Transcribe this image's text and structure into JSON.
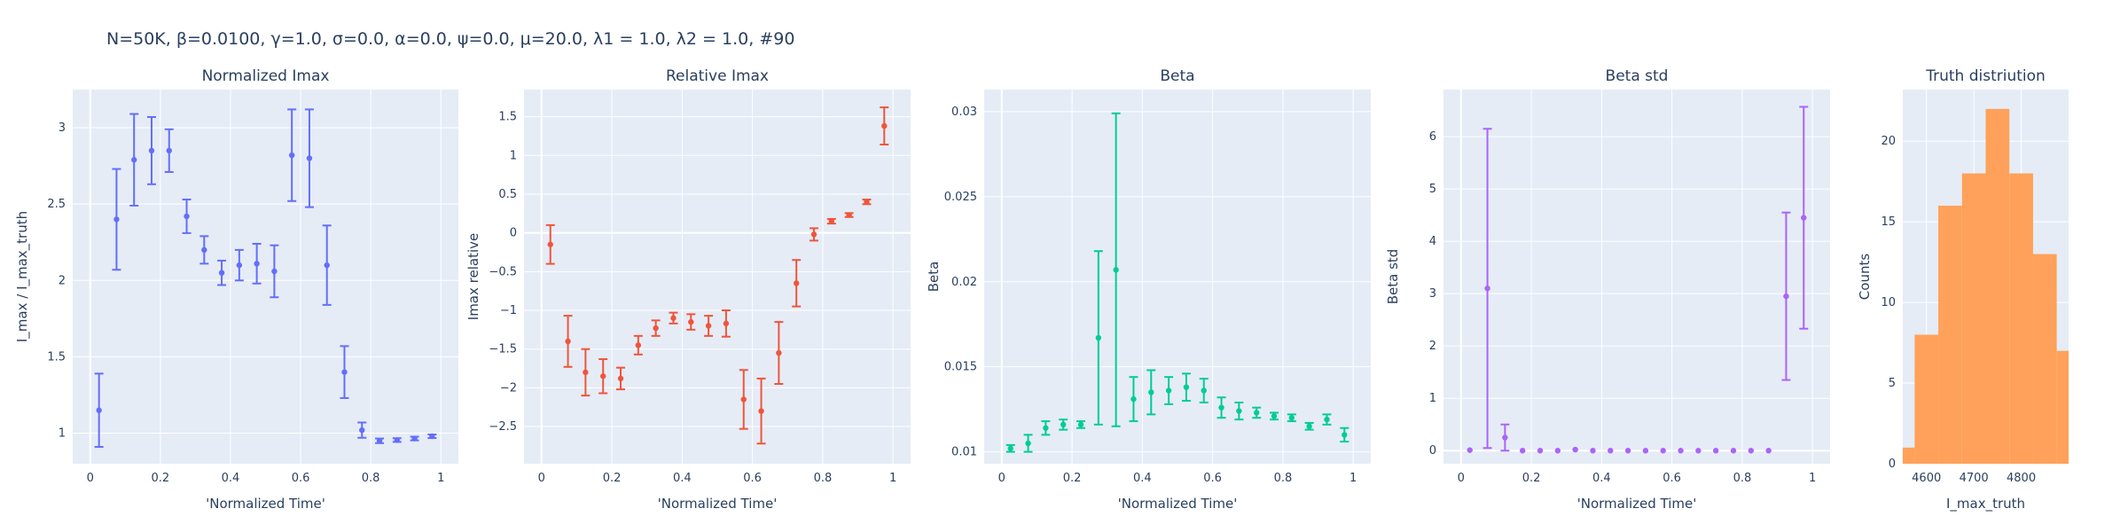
{
  "suptitle": "N=50K, β=0.0100, γ=1.0, σ=0.0,  α=0.0, ψ=0.0, μ=20.0, λ1 = 1.0, λ2 = 1.0, #90",
  "chart_data": [
    {
      "type": "scatter",
      "title": "Normalized Imax",
      "xlabel": "'Normalized Time'",
      "ylabel": "I_max / I_max_truth",
      "color": "#636efa",
      "xlim": [
        -0.05,
        1.05
      ],
      "ylim": [
        0.8,
        3.25
      ],
      "xticks": [
        0,
        0.2,
        0.4,
        0.6,
        0.8,
        1
      ],
      "xtick_labels": [
        "0",
        "0.2",
        "0.4",
        "0.6",
        "0.8",
        "1"
      ],
      "yticks": [
        1,
        1.5,
        2,
        2.5,
        3
      ],
      "ytick_labels": [
        "1",
        "1.5",
        "2",
        "2.5",
        "3"
      ],
      "x": [
        0.025,
        0.075,
        0.125,
        0.175,
        0.225,
        0.275,
        0.325,
        0.375,
        0.425,
        0.475,
        0.525,
        0.575,
        0.625,
        0.675,
        0.725,
        0.775,
        0.825,
        0.875,
        0.925,
        0.975
      ],
      "y": [
        1.15,
        2.4,
        2.79,
        2.85,
        2.85,
        2.42,
        2.2,
        2.05,
        2.1,
        2.11,
        2.06,
        2.82,
        2.8,
        2.1,
        1.4,
        1.02,
        0.95,
        0.955,
        0.965,
        0.98
      ],
      "err": [
        0.24,
        0.33,
        0.3,
        0.22,
        0.14,
        0.11,
        0.09,
        0.08,
        0.1,
        0.13,
        0.17,
        0.3,
        0.32,
        0.26,
        0.17,
        0.05,
        0.015,
        0.012,
        0.012,
        0.012
      ]
    },
    {
      "type": "scatter",
      "title": "Relative Imax",
      "xlabel": "'Normalized Time'",
      "ylabel": "Imax relative",
      "color": "#ef553b",
      "xlim": [
        -0.05,
        1.05
      ],
      "ylim": [
        -2.98,
        1.85
      ],
      "xticks": [
        0,
        0.2,
        0.4,
        0.6,
        0.8,
        1
      ],
      "xtick_labels": [
        "0",
        "0.2",
        "0.4",
        "0.6",
        "0.8",
        "1"
      ],
      "yticks": [
        -2.5,
        -2,
        -1.5,
        -1,
        -0.5,
        0,
        0.5,
        1,
        1.5
      ],
      "ytick_labels": [
        "−2.5",
        "−2",
        "−1.5",
        "−1",
        "−0.5",
        "0",
        "0.5",
        "1",
        "1.5"
      ],
      "x": [
        0.025,
        0.075,
        0.125,
        0.175,
        0.225,
        0.275,
        0.325,
        0.375,
        0.425,
        0.475,
        0.525,
        0.575,
        0.625,
        0.675,
        0.725,
        0.775,
        0.825,
        0.875,
        0.925,
        0.975
      ],
      "y": [
        -0.15,
        -1.4,
        -1.8,
        -1.85,
        -1.88,
        -1.45,
        -1.23,
        -1.1,
        -1.15,
        -1.2,
        -1.17,
        -2.15,
        -2.3,
        -1.55,
        -0.65,
        -0.02,
        0.15,
        0.23,
        0.4,
        1.38
      ],
      "err": [
        0.25,
        0.33,
        0.3,
        0.22,
        0.14,
        0.12,
        0.1,
        0.07,
        0.1,
        0.13,
        0.17,
        0.38,
        0.42,
        0.4,
        0.3,
        0.08,
        0.03,
        0.025,
        0.03,
        0.24
      ]
    },
    {
      "type": "scatter",
      "title": "Beta",
      "xlabel": "'Normalized Time'",
      "ylabel": "Beta",
      "color": "#00cc96",
      "xlim": [
        -0.05,
        1.05
      ],
      "ylim": [
        0.0093,
        0.0313
      ],
      "xticks": [
        0,
        0.2,
        0.4,
        0.6,
        0.8,
        1
      ],
      "xtick_labels": [
        "0",
        "0.2",
        "0.4",
        "0.6",
        "0.8",
        "1"
      ],
      "yticks": [
        0.01,
        0.015,
        0.02,
        0.025,
        0.03
      ],
      "ytick_labels": [
        "0.01",
        "0.015",
        "0.02",
        "0.025",
        "0.03"
      ],
      "x": [
        0.025,
        0.075,
        0.125,
        0.175,
        0.225,
        0.275,
        0.325,
        0.375,
        0.425,
        0.475,
        0.525,
        0.575,
        0.625,
        0.675,
        0.725,
        0.775,
        0.825,
        0.875,
        0.925,
        0.975
      ],
      "y": [
        0.0102,
        0.0105,
        0.0114,
        0.0116,
        0.0116,
        0.0167,
        0.0207,
        0.0131,
        0.0135,
        0.0136,
        0.0138,
        0.0136,
        0.0126,
        0.0124,
        0.0123,
        0.0121,
        0.012,
        0.0115,
        0.0119,
        0.011
      ],
      "err": [
        0.0002,
        0.0005,
        0.0004,
        0.0003,
        0.0002,
        0.0051,
        0.0092,
        0.0013,
        0.0013,
        0.0008,
        0.0008,
        0.0007,
        0.0006,
        0.0005,
        0.0003,
        0.0002,
        0.0002,
        0.0002,
        0.0003,
        0.0004
      ]
    },
    {
      "type": "scatter",
      "title": "Beta std",
      "xlabel": "'Normalized Time'",
      "ylabel": "Beta std",
      "color": "#ab63fa",
      "xlim": [
        -0.05,
        1.05
      ],
      "ylim": [
        -0.25,
        6.9
      ],
      "xticks": [
        0,
        0.2,
        0.4,
        0.6,
        0.8,
        1
      ],
      "xtick_labels": [
        "0",
        "0.2",
        "0.4",
        "0.6",
        "0.8",
        "1"
      ],
      "yticks": [
        0,
        1,
        2,
        3,
        4,
        5,
        6
      ],
      "ytick_labels": [
        "0",
        "1",
        "2",
        "3",
        "4",
        "5",
        "6"
      ],
      "x": [
        0.025,
        0.075,
        0.125,
        0.175,
        0.225,
        0.275,
        0.325,
        0.375,
        0.425,
        0.475,
        0.525,
        0.575,
        0.625,
        0.675,
        0.725,
        0.775,
        0.825,
        0.875,
        0.925,
        0.975
      ],
      "y": [
        0.01,
        3.1,
        0.25,
        0.0,
        0.0,
        0.0,
        0.02,
        0.0,
        0.0,
        0.0,
        0.0,
        0.0,
        0.0,
        0.0,
        0.0,
        0.0,
        0.0,
        0.0,
        2.95,
        4.45
      ],
      "err": [
        0.0,
        3.05,
        0.25,
        0.0,
        0.0,
        0.0,
        0.0,
        0.0,
        0.0,
        0.0,
        0.0,
        0.0,
        0.0,
        0.0,
        0.0,
        0.0,
        0.0,
        0.0,
        1.6,
        2.12
      ]
    },
    {
      "type": "bar",
      "title": "Truth distriution",
      "xlabel": "I_max_truth",
      "ylabel": "Counts",
      "color": "#ffa15a",
      "xlim": [
        4550,
        4900
      ],
      "ylim": [
        0,
        23.2
      ],
      "xticks": [
        4600,
        4700,
        4800
      ],
      "xtick_labels": [
        "4600",
        "4700",
        "4800"
      ],
      "yticks": [
        0,
        5,
        10,
        15,
        20
      ],
      "ytick_labels": [
        "0",
        "5",
        "10",
        "15",
        "20"
      ],
      "bin_edges": [
        4550,
        4575,
        4625,
        4675,
        4725,
        4775,
        4825,
        4875,
        4900
      ],
      "values": [
        1,
        8,
        16,
        18,
        22,
        18,
        13,
        7
      ]
    }
  ]
}
